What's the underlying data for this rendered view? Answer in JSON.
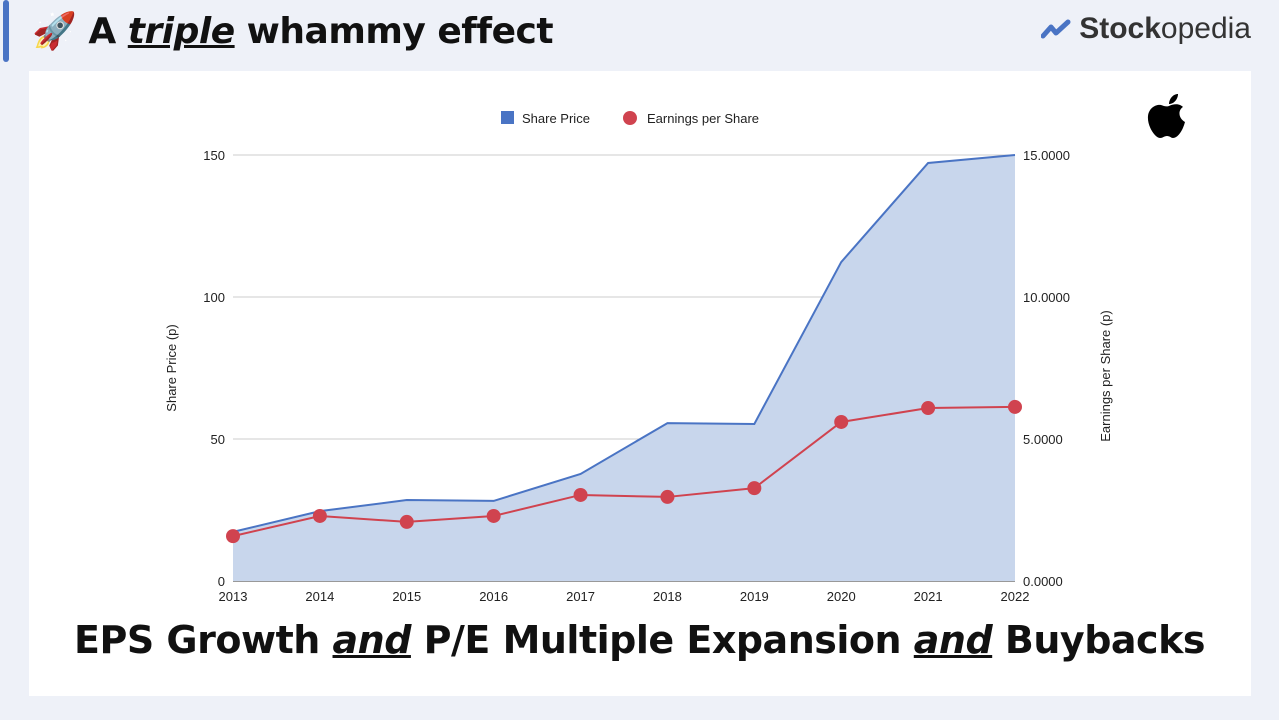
{
  "header": {
    "icon": "rocket-icon",
    "title_pre": "A ",
    "title_em": "triple",
    "title_post": " whammy effect"
  },
  "brand": {
    "icon": "stockopedia-logo-icon",
    "bold": "Stock",
    "rest": "opedia"
  },
  "company_logo": "apple-logo-icon",
  "footer": {
    "p1": "EPS Growth ",
    "em1": "and",
    "p2": " P/E Multiple Expansion ",
    "em2": "and",
    "p3": " Buybacks"
  },
  "chart_data": {
    "type": "area+line",
    "categories": [
      "2013",
      "2014",
      "2015",
      "2016",
      "2017",
      "2018",
      "2019",
      "2020",
      "2021",
      "2022"
    ],
    "series": [
      {
        "name": "Share Price",
        "type": "area",
        "axis": "left",
        "color": "#4a74c4",
        "fill": "#c8d6ec",
        "values": [
          17.3,
          24.6,
          28.5,
          28.2,
          37.7,
          55.6,
          55.3,
          112.3,
          147.2,
          150
        ]
      },
      {
        "name": "Earnings per Share",
        "type": "line",
        "axis": "right",
        "color": "#d0434f",
        "values": [
          1.58,
          2.29,
          2.08,
          2.29,
          3.03,
          2.96,
          3.27,
          5.6,
          6.09,
          6.13
        ]
      }
    ],
    "ylabel": "Share Price (p)",
    "ylim": [
      0,
      150
    ],
    "yticks": [
      "0",
      "50",
      "100",
      "150"
    ],
    "y2label": "Earnings per Share (p)",
    "y2lim": [
      0,
      15
    ],
    "y2ticks": [
      "0.0000",
      "5.0000",
      "10.0000",
      "15.0000"
    ],
    "grid": true,
    "legend": "top"
  }
}
